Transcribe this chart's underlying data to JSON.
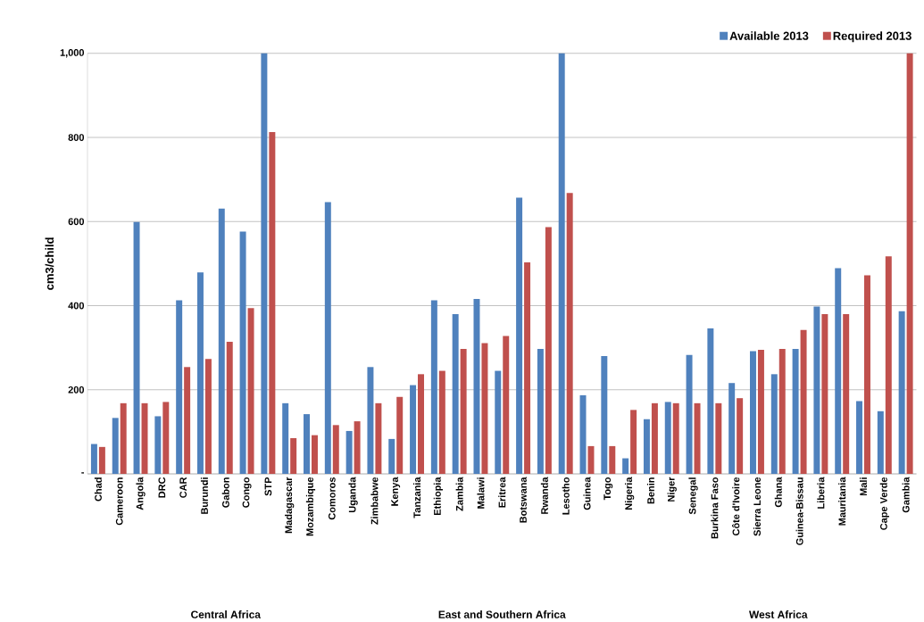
{
  "chart_data": {
    "type": "bar",
    "ylabel": "cm3/child",
    "categories": [
      "Chad",
      "Cameroon",
      "Angola",
      "DRC",
      "CAR",
      "Burundi",
      "Gabon",
      "Congo",
      "STP",
      "Madagascar",
      "Mozambique",
      "Comoros",
      "Uganda",
      "Zimbabwe",
      "Kenya",
      "Tanzania",
      "Ethiopia",
      "Zambia",
      "Malawi",
      "Eritrea",
      "Botswana",
      "Rwanda",
      "Lesotho",
      "Guinea",
      "Togo",
      "Nigeria",
      "Benin",
      "Niger",
      "Senegal",
      "Burkina Faso",
      "Côte d'Ivoire",
      "Sierra Leone",
      "Ghana",
      "Guinea-Bissau",
      "Liberia",
      "Mauritania",
      "Mali",
      "Cape Verde",
      "Gambia"
    ],
    "series": [
      {
        "name": "Available 2013",
        "color": "#4f81bd",
        "values": [
          71,
          133,
          599,
          137,
          413,
          479,
          631,
          576,
          1000,
          168,
          142,
          646,
          102,
          254,
          83,
          211,
          413,
          380,
          416,
          245,
          657,
          297,
          1000,
          187,
          280,
          37,
          130,
          171,
          283,
          346,
          216,
          292,
          237,
          297,
          398,
          489,
          173,
          149,
          387
        ]
      },
      {
        "name": "Required 2013",
        "color": "#c0504d",
        "values": [
          64,
          168,
          168,
          171,
          254,
          273,
          314,
          394,
          813,
          85,
          92,
          116,
          125,
          168,
          183,
          237,
          245,
          297,
          311,
          328,
          503,
          587,
          668,
          66,
          66,
          152,
          168,
          168,
          168,
          168,
          180,
          295,
          297,
          342,
          380,
          380,
          472,
          517,
          1000
        ]
      }
    ],
    "ylim": [
      0,
      1000
    ],
    "yticks": [
      {
        "value": 0,
        "label": "-"
      },
      200,
      400,
      600,
      800,
      {
        "value": 1000,
        "label": "1,000"
      }
    ],
    "grid": "y",
    "legend": "top right",
    "annotations": [
      "Central Africa",
      "East and Southern Africa",
      "West Africa"
    ]
  }
}
